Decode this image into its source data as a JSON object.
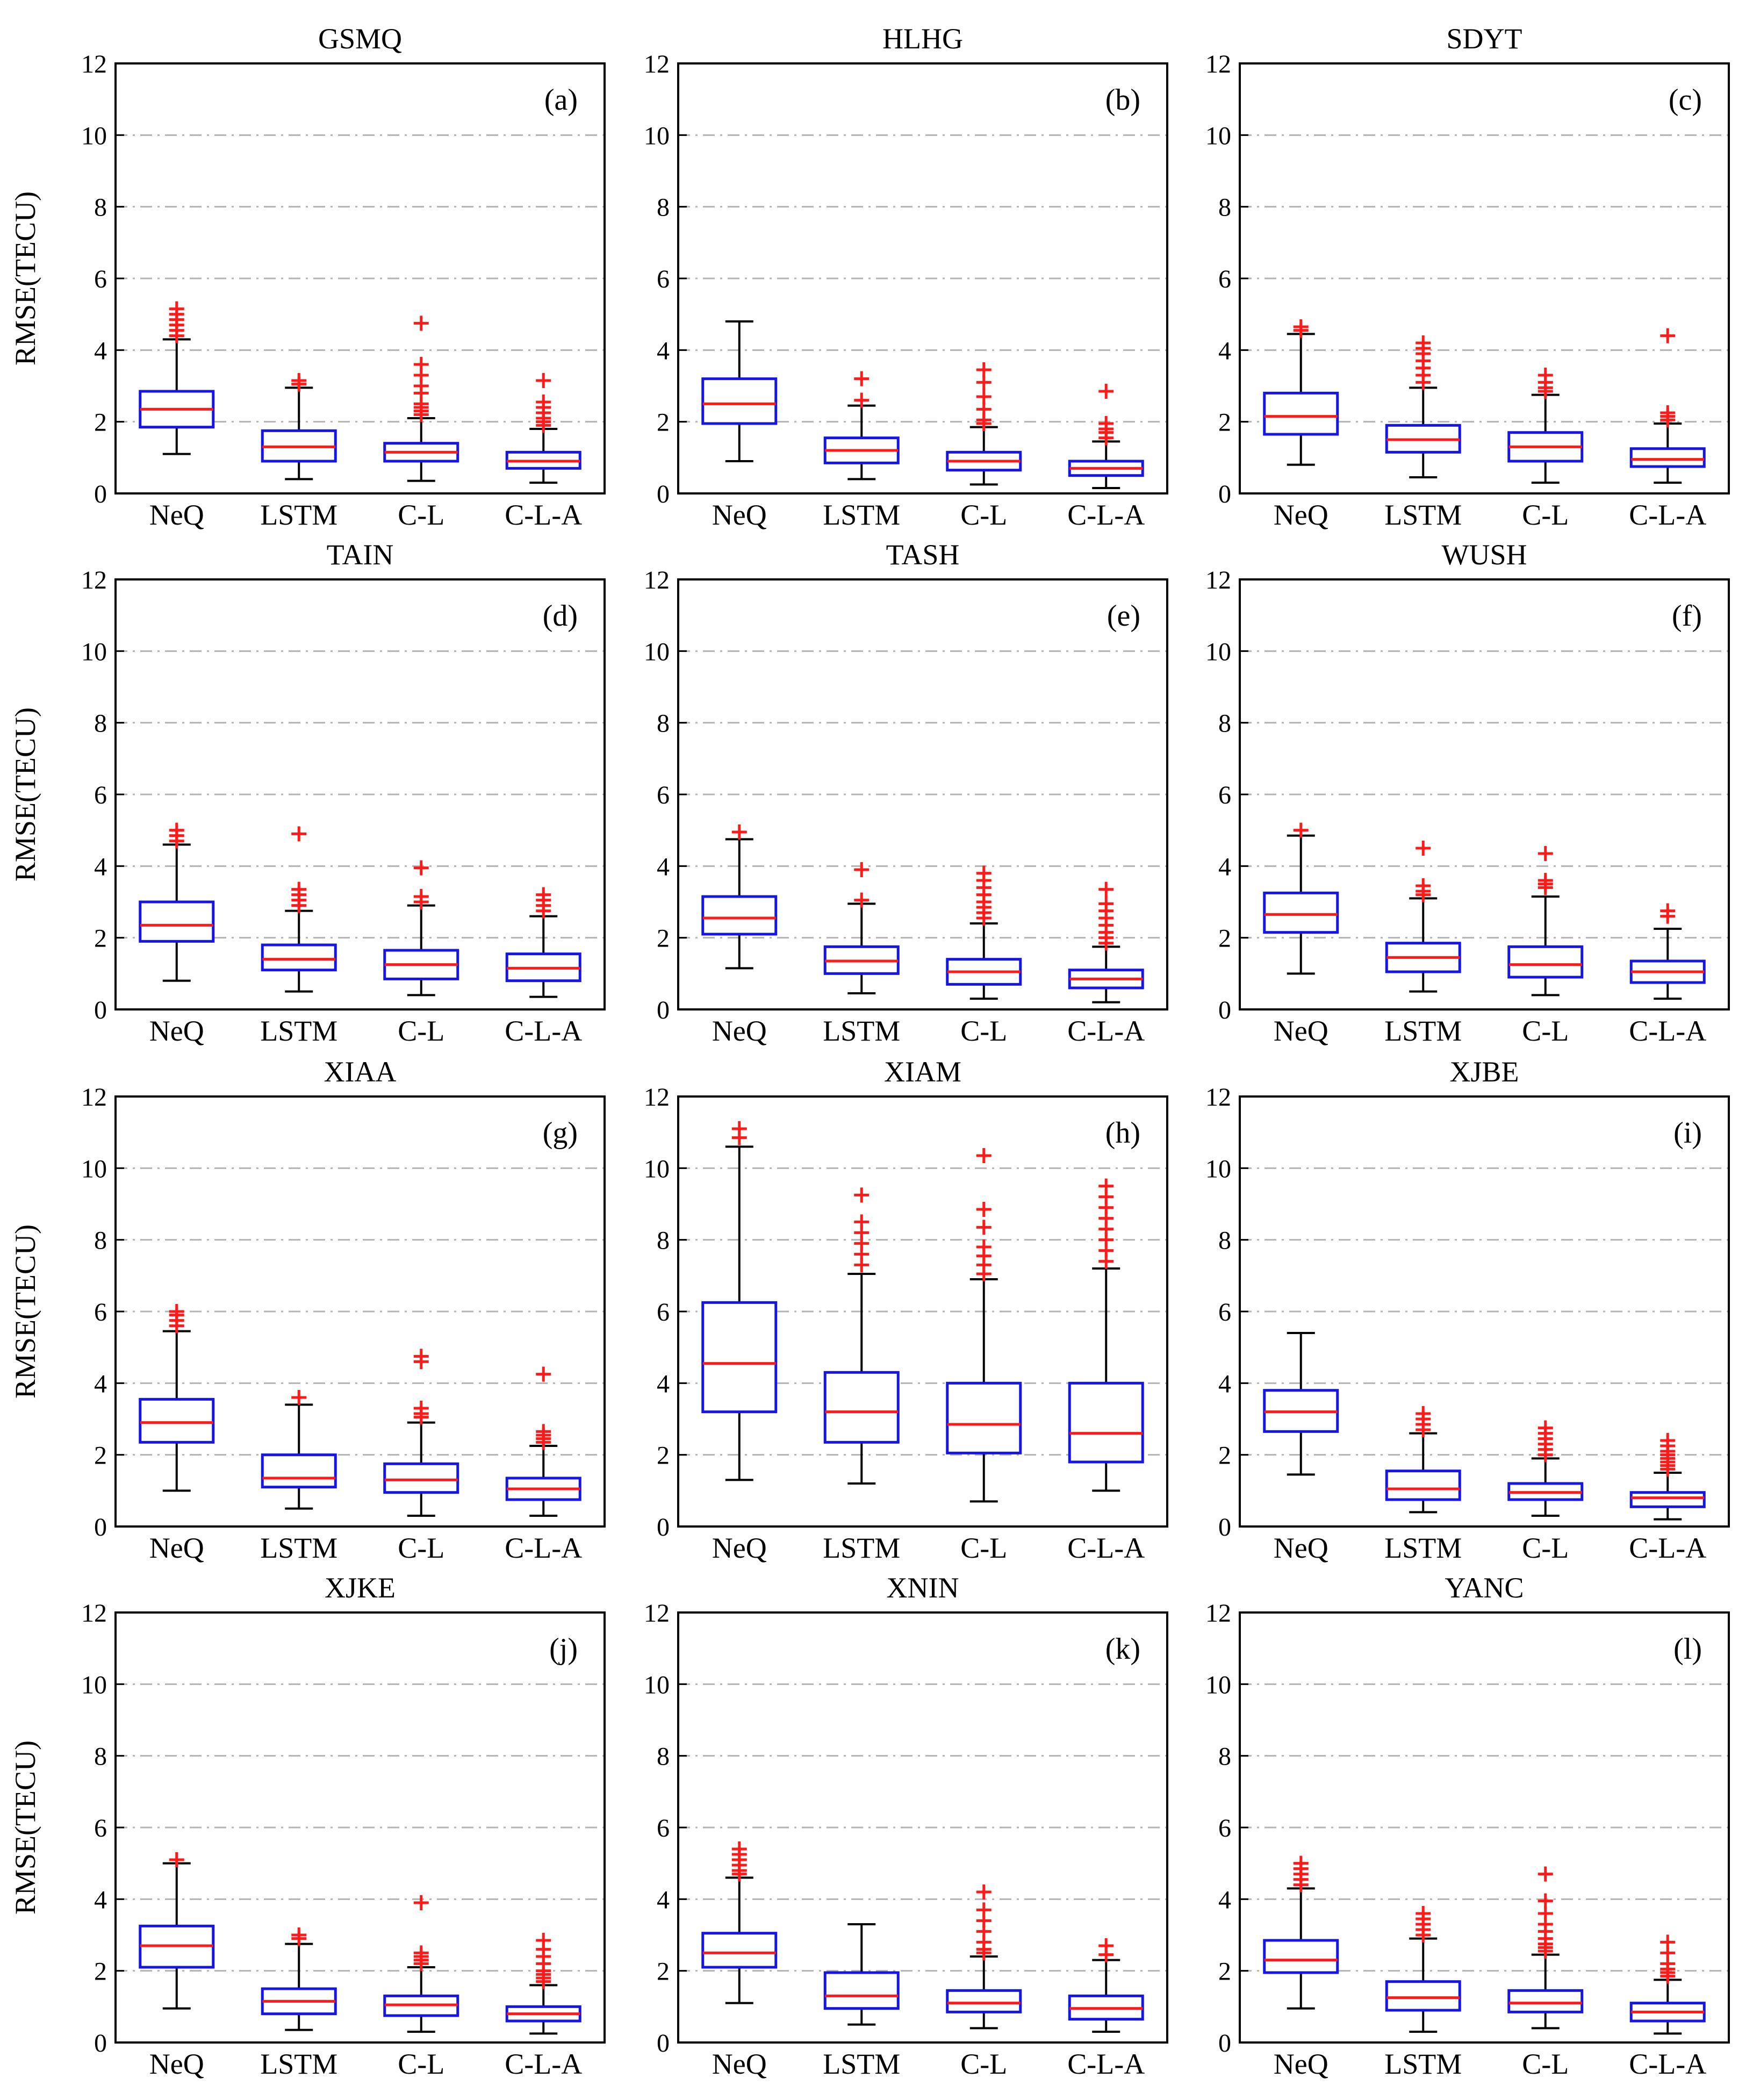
{
  "figure": {
    "y_axis_label": "RMSE(TECU)",
    "colors": {
      "box": "#1515e6",
      "median": "#ff1a1a",
      "whisker": "#000000",
      "outlier": "#ff1a1a",
      "grid": "#b3b3b3"
    }
  },
  "chart_data": [
    {
      "type": "box",
      "title": "GSMQ",
      "panel_label": "(a)",
      "categories": [
        "NeQ",
        "LSTM",
        "C-L",
        "C-L-A"
      ],
      "ylim": [
        0,
        12
      ],
      "yticks": [
        0,
        2,
        4,
        6,
        8,
        10,
        12
      ],
      "ylabel": "RMSE(TECU)",
      "grid": "horizontal dash-dot",
      "boxes": [
        {
          "min": 1.1,
          "q1": 1.85,
          "median": 2.35,
          "q3": 2.85,
          "max": 4.3,
          "outliers": [
            4.4,
            4.55,
            4.7,
            4.85,
            5.0,
            5.15
          ]
        },
        {
          "min": 0.4,
          "q1": 0.9,
          "median": 1.3,
          "q3": 1.75,
          "max": 2.95,
          "outliers": [
            3.05,
            3.15
          ]
        },
        {
          "min": 0.35,
          "q1": 0.9,
          "median": 1.15,
          "q3": 1.4,
          "max": 2.1,
          "outliers": [
            2.2,
            2.3,
            2.4,
            2.5,
            2.8,
            3.0,
            3.3,
            3.6,
            4.75
          ]
        },
        {
          "min": 0.3,
          "q1": 0.7,
          "median": 0.9,
          "q3": 1.15,
          "max": 1.8,
          "outliers": [
            1.9,
            2.0,
            2.1,
            2.25,
            2.4,
            2.55,
            3.15
          ]
        }
      ]
    },
    {
      "type": "box",
      "title": "HLHG",
      "panel_label": "(b)",
      "categories": [
        "NeQ",
        "LSTM",
        "C-L",
        "C-L-A"
      ],
      "ylim": [
        0,
        12
      ],
      "yticks": [
        0,
        2,
        4,
        6,
        8,
        10,
        12
      ],
      "ylabel": "",
      "grid": "horizontal dash-dot",
      "boxes": [
        {
          "min": 0.9,
          "q1": 1.95,
          "median": 2.5,
          "q3": 3.2,
          "max": 4.8,
          "outliers": []
        },
        {
          "min": 0.4,
          "q1": 0.85,
          "median": 1.2,
          "q3": 1.55,
          "max": 2.45,
          "outliers": [
            2.6,
            3.2
          ]
        },
        {
          "min": 0.25,
          "q1": 0.65,
          "median": 0.9,
          "q3": 1.15,
          "max": 1.85,
          "outliers": [
            1.95,
            2.05,
            2.35,
            2.7,
            3.1,
            3.45
          ]
        },
        {
          "min": 0.15,
          "q1": 0.5,
          "median": 0.7,
          "q3": 0.9,
          "max": 1.45,
          "outliers": [
            1.55,
            1.7,
            1.8,
            1.95,
            2.85
          ]
        }
      ]
    },
    {
      "type": "box",
      "title": "SDYT",
      "panel_label": "(c)",
      "categories": [
        "NeQ",
        "LSTM",
        "C-L",
        "C-L-A"
      ],
      "ylim": [
        0,
        12
      ],
      "yticks": [
        0,
        2,
        4,
        6,
        8,
        10,
        12
      ],
      "ylabel": "",
      "grid": "horizontal dash-dot",
      "boxes": [
        {
          "min": 0.8,
          "q1": 1.65,
          "median": 2.15,
          "q3": 2.8,
          "max": 4.45,
          "outliers": [
            4.55,
            4.65
          ]
        },
        {
          "min": 0.45,
          "q1": 1.15,
          "median": 1.5,
          "q3": 1.9,
          "max": 2.95,
          "outliers": [
            3.1,
            3.3,
            3.5,
            3.7,
            3.9,
            4.05,
            4.2
          ]
        },
        {
          "min": 0.3,
          "q1": 0.9,
          "median": 1.3,
          "q3": 1.7,
          "max": 2.75,
          "outliers": [
            2.85,
            2.95,
            3.1,
            3.3
          ]
        },
        {
          "min": 0.3,
          "q1": 0.75,
          "median": 0.95,
          "q3": 1.25,
          "max": 1.95,
          "outliers": [
            2.05,
            2.15,
            2.25,
            4.4
          ]
        }
      ]
    },
    {
      "type": "box",
      "title": "TAIN",
      "panel_label": "(d)",
      "categories": [
        "NeQ",
        "LSTM",
        "C-L",
        "C-L-A"
      ],
      "ylim": [
        0,
        12
      ],
      "yticks": [
        0,
        2,
        4,
        6,
        8,
        10,
        12
      ],
      "ylabel": "RMSE(TECU)",
      "grid": "horizontal dash-dot",
      "boxes": [
        {
          "min": 0.8,
          "q1": 1.9,
          "median": 2.35,
          "q3": 3.0,
          "max": 4.6,
          "outliers": [
            4.7,
            4.85,
            5.0
          ]
        },
        {
          "min": 0.5,
          "q1": 1.1,
          "median": 1.4,
          "q3": 1.8,
          "max": 2.75,
          "outliers": [
            2.9,
            3.05,
            3.2,
            3.35,
            4.9
          ]
        },
        {
          "min": 0.4,
          "q1": 0.85,
          "median": 1.25,
          "q3": 1.65,
          "max": 2.9,
          "outliers": [
            3.0,
            3.15,
            3.95
          ]
        },
        {
          "min": 0.35,
          "q1": 0.8,
          "median": 1.15,
          "q3": 1.55,
          "max": 2.6,
          "outliers": [
            2.75,
            2.9,
            3.05,
            3.2
          ]
        }
      ]
    },
    {
      "type": "box",
      "title": "TASH",
      "panel_label": "(e)",
      "categories": [
        "NeQ",
        "LSTM",
        "C-L",
        "C-L-A"
      ],
      "ylim": [
        0,
        12
      ],
      "yticks": [
        0,
        2,
        4,
        6,
        8,
        10,
        12
      ],
      "ylabel": "",
      "grid": "horizontal dash-dot",
      "boxes": [
        {
          "min": 1.15,
          "q1": 2.1,
          "median": 2.55,
          "q3": 3.15,
          "max": 4.75,
          "outliers": [
            4.95
          ]
        },
        {
          "min": 0.45,
          "q1": 1.0,
          "median": 1.35,
          "q3": 1.75,
          "max": 2.95,
          "outliers": [
            3.05,
            3.9
          ]
        },
        {
          "min": 0.3,
          "q1": 0.7,
          "median": 1.05,
          "q3": 1.4,
          "max": 2.4,
          "outliers": [
            2.55,
            2.7,
            2.85,
            3.0,
            3.2,
            3.4,
            3.6,
            3.8
          ]
        },
        {
          "min": 0.2,
          "q1": 0.6,
          "median": 0.85,
          "q3": 1.1,
          "max": 1.75,
          "outliers": [
            1.85,
            2.0,
            2.15,
            2.35,
            2.55,
            2.75,
            2.95,
            3.35
          ]
        }
      ]
    },
    {
      "type": "box",
      "title": "WUSH",
      "panel_label": "(f)",
      "categories": [
        "NeQ",
        "LSTM",
        "C-L",
        "C-L-A"
      ],
      "ylim": [
        0,
        12
      ],
      "yticks": [
        0,
        2,
        4,
        6,
        8,
        10,
        12
      ],
      "ylabel": "",
      "grid": "horizontal dash-dot",
      "boxes": [
        {
          "min": 1.0,
          "q1": 2.15,
          "median": 2.65,
          "q3": 3.25,
          "max": 4.85,
          "outliers": [
            5.0
          ]
        },
        {
          "min": 0.5,
          "q1": 1.05,
          "median": 1.45,
          "q3": 1.85,
          "max": 3.1,
          "outliers": [
            3.2,
            3.3,
            3.45,
            4.5
          ]
        },
        {
          "min": 0.4,
          "q1": 0.9,
          "median": 1.25,
          "q3": 1.75,
          "max": 3.15,
          "outliers": [
            3.4,
            3.5,
            3.6,
            4.35
          ]
        },
        {
          "min": 0.3,
          "q1": 0.75,
          "median": 1.05,
          "q3": 1.35,
          "max": 2.25,
          "outliers": [
            2.6,
            2.75
          ]
        }
      ]
    },
    {
      "type": "box",
      "title": "XIAA",
      "panel_label": "(g)",
      "categories": [
        "NeQ",
        "LSTM",
        "C-L",
        "C-L-A"
      ],
      "ylim": [
        0,
        12
      ],
      "yticks": [
        0,
        2,
        4,
        6,
        8,
        10,
        12
      ],
      "ylabel": "RMSE(TECU)",
      "grid": "horizontal dash-dot",
      "boxes": [
        {
          "min": 1.0,
          "q1": 2.35,
          "median": 2.9,
          "q3": 3.55,
          "max": 5.45,
          "outliers": [
            5.6,
            5.75,
            5.9,
            6.0
          ]
        },
        {
          "min": 0.5,
          "q1": 1.1,
          "median": 1.35,
          "q3": 2.0,
          "max": 3.4,
          "outliers": [
            3.6
          ]
        },
        {
          "min": 0.3,
          "q1": 0.95,
          "median": 1.3,
          "q3": 1.75,
          "max": 2.9,
          "outliers": [
            3.05,
            3.15,
            3.3,
            4.6,
            4.75
          ]
        },
        {
          "min": 0.3,
          "q1": 0.75,
          "median": 1.05,
          "q3": 1.35,
          "max": 2.25,
          "outliers": [
            2.35,
            2.45,
            2.55,
            2.65,
            4.25
          ]
        }
      ]
    },
    {
      "type": "box",
      "title": "XIAM",
      "panel_label": "(h)",
      "categories": [
        "NeQ",
        "LSTM",
        "C-L",
        "C-L-A"
      ],
      "ylim": [
        0,
        12
      ],
      "yticks": [
        0,
        2,
        4,
        6,
        8,
        10,
        12
      ],
      "ylabel": "",
      "grid": "horizontal dash-dot",
      "boxes": [
        {
          "min": 1.3,
          "q1": 3.2,
          "median": 4.55,
          "q3": 6.25,
          "max": 10.6,
          "outliers": [
            10.85,
            11.1
          ]
        },
        {
          "min": 1.2,
          "q1": 2.35,
          "median": 3.2,
          "q3": 4.3,
          "max": 7.05,
          "outliers": [
            7.3,
            7.6,
            7.9,
            8.2,
            8.5,
            9.25
          ]
        },
        {
          "min": 0.7,
          "q1": 2.05,
          "median": 2.85,
          "q3": 4.0,
          "max": 6.9,
          "outliers": [
            7.05,
            7.3,
            7.55,
            7.8,
            8.35,
            8.85,
            10.35
          ]
        },
        {
          "min": 1.0,
          "q1": 1.8,
          "median": 2.6,
          "q3": 4.0,
          "max": 7.2,
          "outliers": [
            7.4,
            7.7,
            8.0,
            8.3,
            8.6,
            8.9,
            9.2,
            9.5
          ]
        }
      ]
    },
    {
      "type": "box",
      "title": "XJBE",
      "panel_label": "(i)",
      "categories": [
        "NeQ",
        "LSTM",
        "C-L",
        "C-L-A"
      ],
      "ylim": [
        0,
        12
      ],
      "yticks": [
        0,
        2,
        4,
        6,
        8,
        10,
        12
      ],
      "ylabel": "",
      "grid": "horizontal dash-dot",
      "boxes": [
        {
          "min": 1.45,
          "q1": 2.65,
          "median": 3.2,
          "q3": 3.8,
          "max": 5.4,
          "outliers": []
        },
        {
          "min": 0.4,
          "q1": 0.75,
          "median": 1.05,
          "q3": 1.55,
          "max": 2.6,
          "outliers": [
            2.7,
            2.85,
            3.0,
            3.15
          ]
        },
        {
          "min": 0.3,
          "q1": 0.75,
          "median": 0.95,
          "q3": 1.2,
          "max": 1.9,
          "outliers": [
            2.0,
            2.15,
            2.3,
            2.45,
            2.6,
            2.75
          ]
        },
        {
          "min": 0.2,
          "q1": 0.55,
          "median": 0.8,
          "q3": 0.95,
          "max": 1.5,
          "outliers": [
            1.6,
            1.7,
            1.8,
            1.9,
            2.0,
            2.1,
            2.25,
            2.4
          ]
        }
      ]
    },
    {
      "type": "box",
      "title": "XJKE",
      "panel_label": "(j)",
      "categories": [
        "NeQ",
        "LSTM",
        "C-L",
        "C-L-A"
      ],
      "ylim": [
        0,
        12
      ],
      "yticks": [
        0,
        2,
        4,
        6,
        8,
        10,
        12
      ],
      "ylabel": "RMSE(TECU)",
      "grid": "horizontal dash-dot",
      "boxes": [
        {
          "min": 0.95,
          "q1": 2.1,
          "median": 2.7,
          "q3": 3.25,
          "max": 5.0,
          "outliers": [
            5.1
          ]
        },
        {
          "min": 0.35,
          "q1": 0.8,
          "median": 1.15,
          "q3": 1.5,
          "max": 2.75,
          "outliers": [
            2.9,
            3.0
          ]
        },
        {
          "min": 0.3,
          "q1": 0.75,
          "median": 1.05,
          "q3": 1.3,
          "max": 2.1,
          "outliers": [
            2.2,
            2.3,
            2.4,
            2.5,
            3.9
          ]
        },
        {
          "min": 0.25,
          "q1": 0.6,
          "median": 0.8,
          "q3": 1.0,
          "max": 1.6,
          "outliers": [
            1.7,
            1.8,
            1.9,
            2.0,
            2.2,
            2.4,
            2.6,
            2.85
          ]
        }
      ]
    },
    {
      "type": "box",
      "title": "XNIN",
      "panel_label": "(k)",
      "categories": [
        "NeQ",
        "LSTM",
        "C-L",
        "C-L-A"
      ],
      "ylim": [
        0,
        12
      ],
      "yticks": [
        0,
        2,
        4,
        6,
        8,
        10,
        12
      ],
      "ylabel": "",
      "grid": "horizontal dash-dot",
      "boxes": [
        {
          "min": 1.1,
          "q1": 2.1,
          "median": 2.5,
          "q3": 3.05,
          "max": 4.6,
          "outliers": [
            4.7,
            4.8,
            4.95,
            5.1,
            5.25,
            5.4
          ]
        },
        {
          "min": 0.5,
          "q1": 0.95,
          "median": 1.3,
          "q3": 1.95,
          "max": 3.3,
          "outliers": []
        },
        {
          "min": 0.4,
          "q1": 0.85,
          "median": 1.1,
          "q3": 1.45,
          "max": 2.4,
          "outliers": [
            2.5,
            2.6,
            2.8,
            3.1,
            3.4,
            3.7,
            4.2
          ]
        },
        {
          "min": 0.3,
          "q1": 0.65,
          "median": 0.95,
          "q3": 1.3,
          "max": 2.3,
          "outliers": [
            2.45,
            2.7
          ]
        }
      ]
    },
    {
      "type": "box",
      "title": "YANC",
      "panel_label": "(l)",
      "categories": [
        "NeQ",
        "LSTM",
        "C-L",
        "C-L-A"
      ],
      "ylim": [
        0,
        12
      ],
      "yticks": [
        0,
        2,
        4,
        6,
        8,
        10,
        12
      ],
      "ylabel": "",
      "grid": "horizontal dash-dot",
      "boxes": [
        {
          "min": 0.95,
          "q1": 1.95,
          "median": 2.3,
          "q3": 2.85,
          "max": 4.3,
          "outliers": [
            4.4,
            4.55,
            4.7,
            4.85,
            5.0
          ]
        },
        {
          "min": 0.3,
          "q1": 0.9,
          "median": 1.25,
          "q3": 1.7,
          "max": 2.9,
          "outliers": [
            3.0,
            3.15,
            3.3,
            3.45,
            3.6
          ]
        },
        {
          "min": 0.4,
          "q1": 0.85,
          "median": 1.1,
          "q3": 1.45,
          "max": 2.45,
          "outliers": [
            2.55,
            2.65,
            2.75,
            2.9,
            3.1,
            3.3,
            3.6,
            3.95,
            4.7
          ]
        },
        {
          "min": 0.25,
          "q1": 0.6,
          "median": 0.85,
          "q3": 1.1,
          "max": 1.75,
          "outliers": [
            1.85,
            1.95,
            2.05,
            2.2,
            2.5,
            2.8
          ]
        }
      ]
    }
  ]
}
